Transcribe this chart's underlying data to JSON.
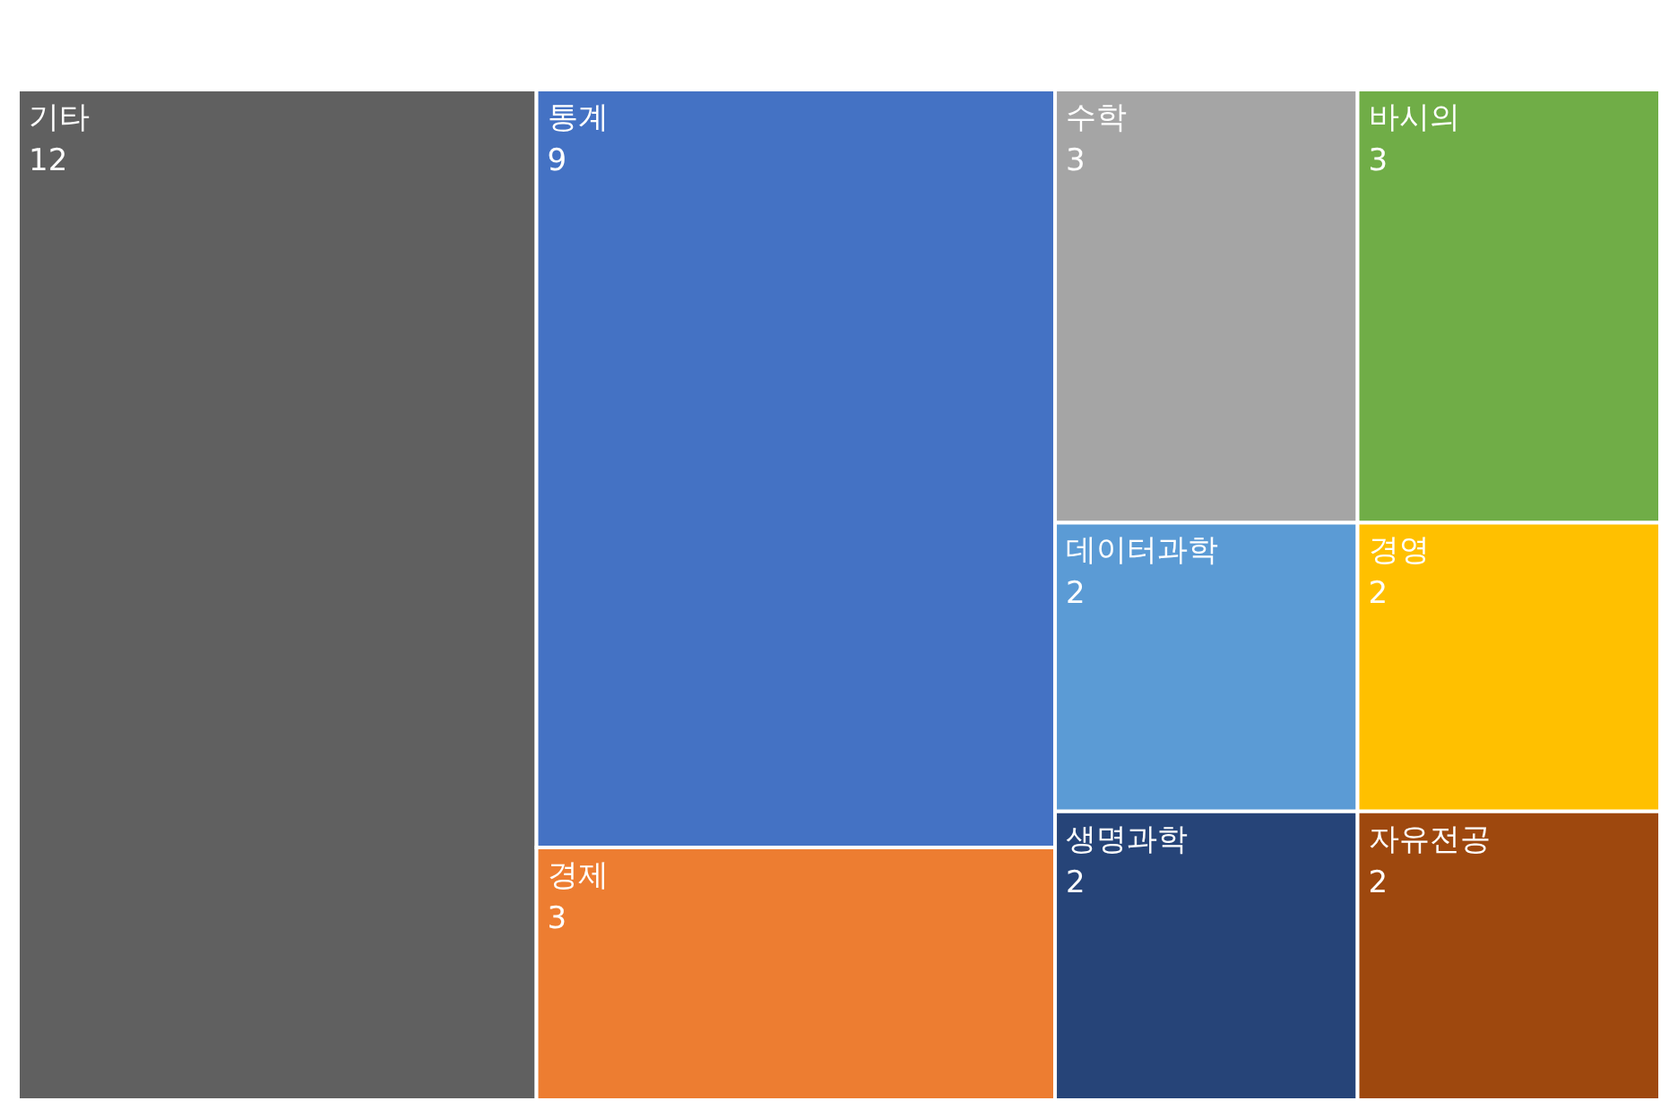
{
  "chart_data": {
    "type": "other",
    "categories": [
      "기타",
      "통계",
      "경제",
      "수학",
      "바시의",
      "데이터과학",
      "생명과학",
      "경영",
      "자유전공"
    ],
    "values": [
      12,
      9,
      3,
      3,
      3,
      2,
      2,
      2,
      2
    ],
    "colors": [
      "#606060",
      "#4472c4",
      "#ed7d31",
      "#a5a5a5",
      "#70ad47",
      "#5b9bd5",
      "#264478",
      "#ffc000",
      "#9e480e"
    ],
    "data_labels": true
  }
}
